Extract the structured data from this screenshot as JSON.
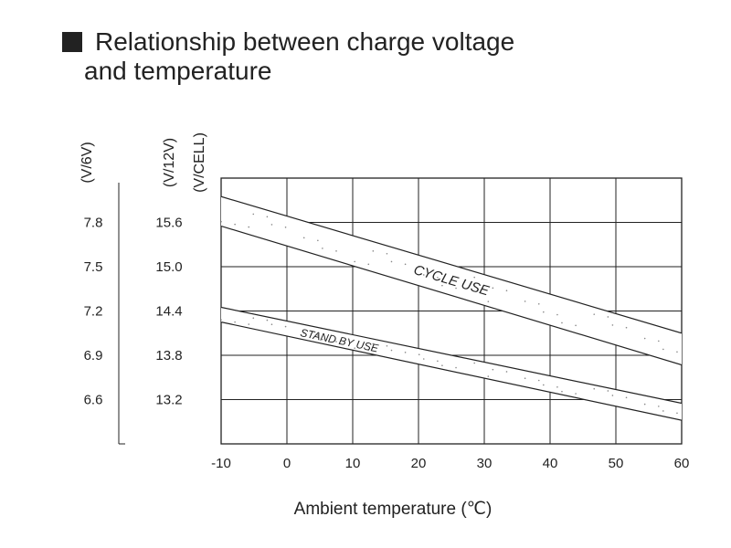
{
  "title": {
    "line1": "Relationship between charge voltage",
    "line2": "and temperature"
  },
  "chart_data": {
    "type": "area",
    "title": "Relationship between charge voltage and temperature",
    "xlabel": "Ambient temperature (℃)",
    "x_ticks": [
      -10,
      0,
      10,
      20,
      30,
      40,
      50,
      60
    ],
    "xlim": [
      -10,
      60
    ],
    "y_axes": [
      {
        "unit": "(V/6V)",
        "ticks": [
          "7.8",
          "7.5",
          "7.2",
          "6.9",
          "6.6"
        ],
        "values": [
          7.8,
          7.5,
          7.2,
          6.9,
          6.6
        ]
      },
      {
        "unit": "(V/12V)",
        "ticks": [
          "15.6",
          "15.0",
          "14.4",
          "13.8",
          "13.2"
        ],
        "values": [
          15.6,
          15.0,
          14.4,
          13.8,
          13.2
        ]
      },
      {
        "unit": "(V/CELL)",
        "ticks": [],
        "values": []
      }
    ],
    "ylim_12v": [
      12.6,
      16.2
    ],
    "grid": true,
    "series": [
      {
        "name": "CYCLE USE",
        "upper": {
          "x": [
            -10,
            60
          ],
          "y": [
            15.95,
            14.1
          ]
        },
        "lower": {
          "x": [
            -10,
            60
          ],
          "y": [
            15.55,
            13.67
          ]
        }
      },
      {
        "name": "STAND BY USE",
        "upper": {
          "x": [
            -10,
            60
          ],
          "y": [
            14.45,
            13.15
          ]
        },
        "lower": {
          "x": [
            -10,
            60
          ],
          "y": [
            14.25,
            12.92
          ]
        }
      }
    ]
  }
}
